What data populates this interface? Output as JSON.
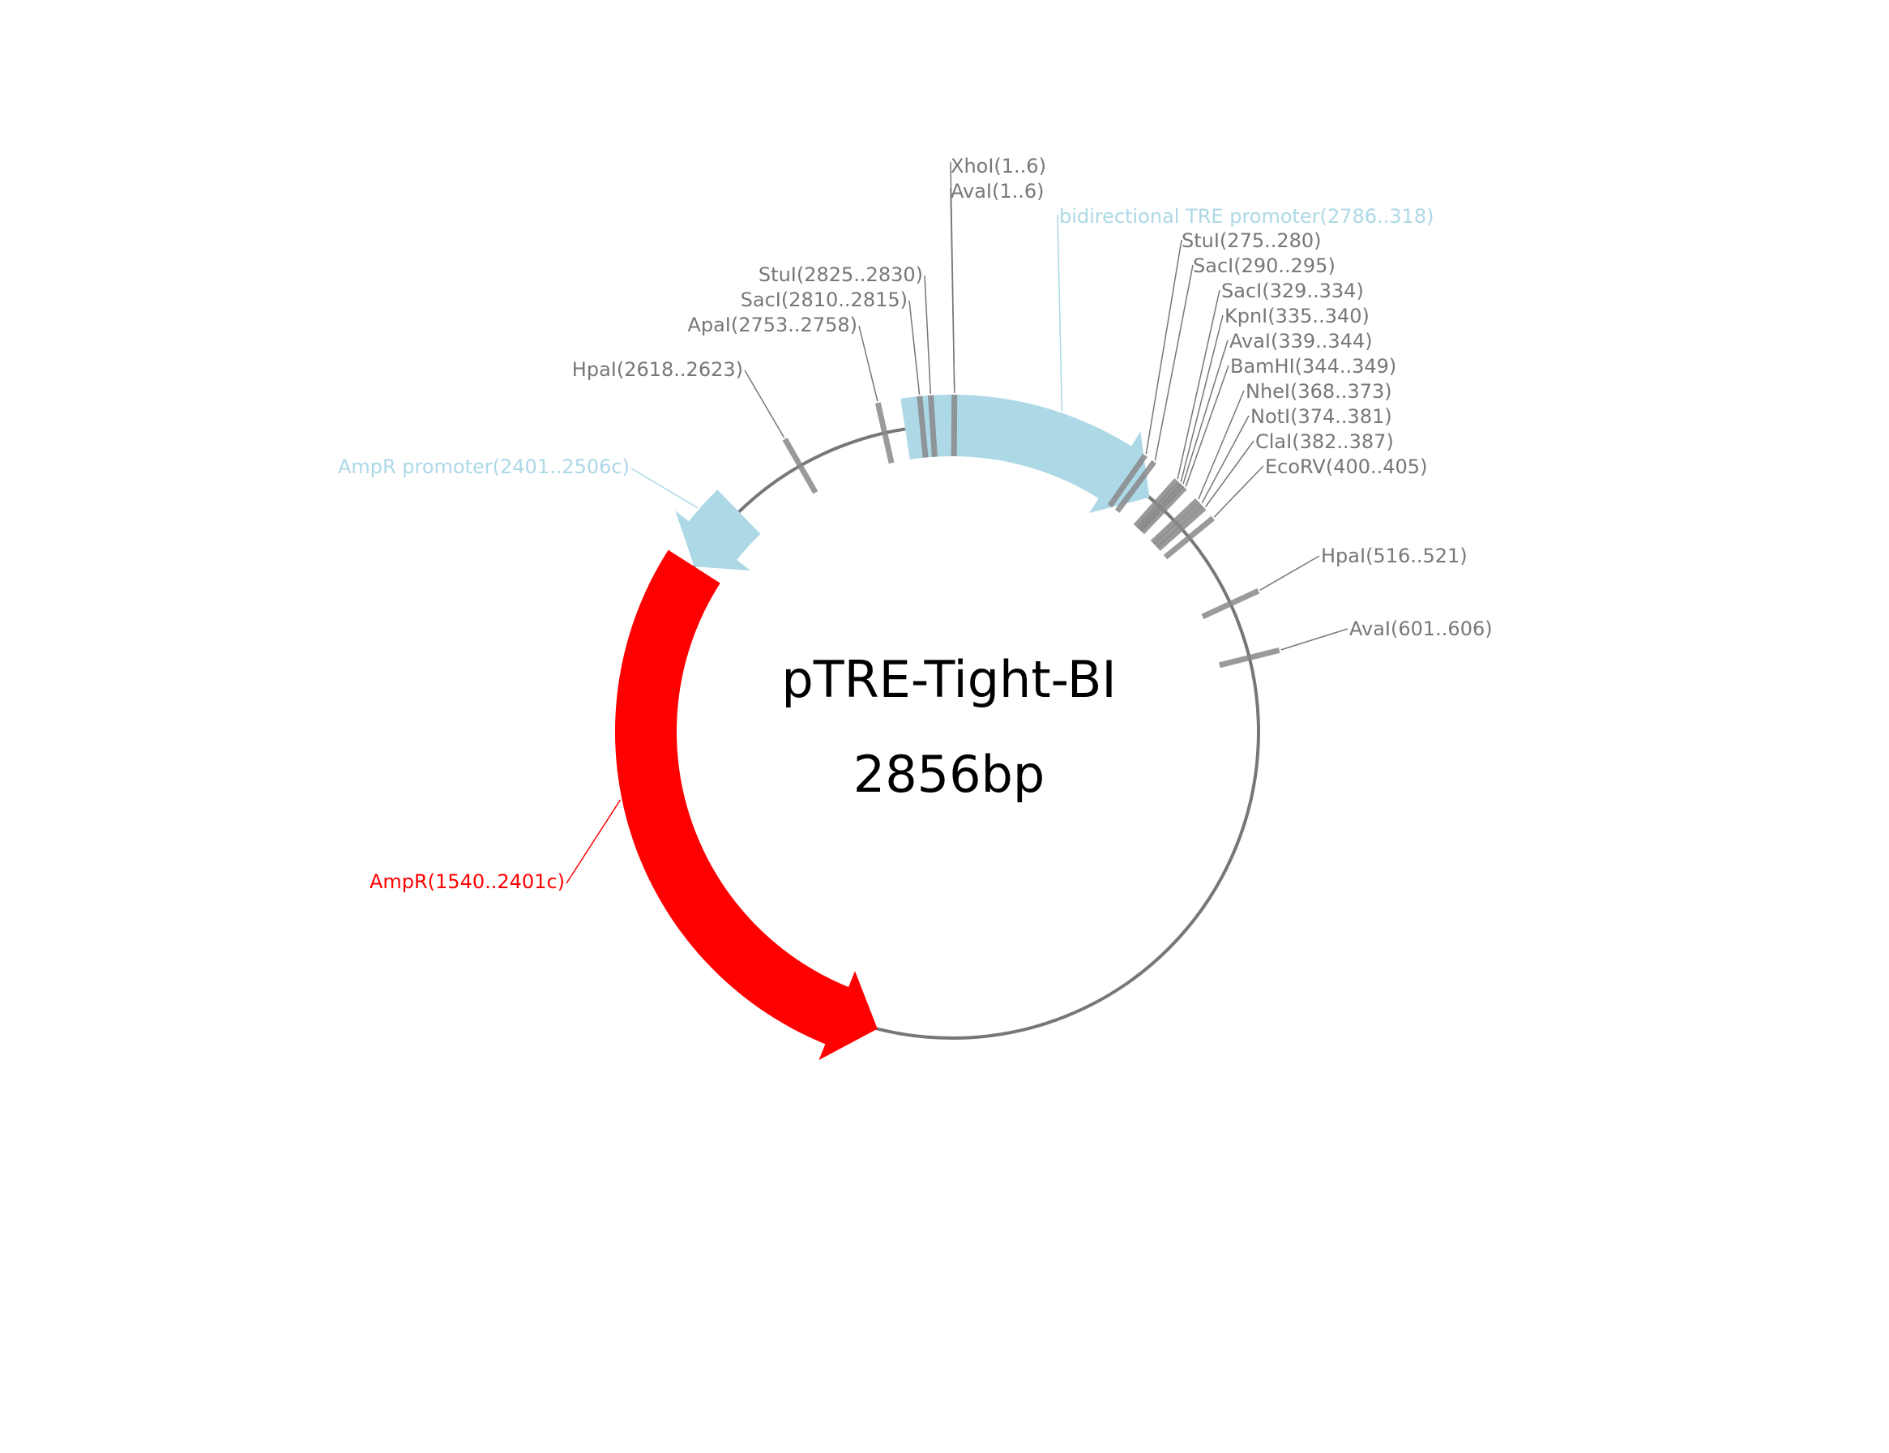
{
  "plasmid": {
    "name": "pTRE-Tight-BI",
    "length_label": "2856bp",
    "length": 2856
  },
  "colors": {
    "backbone": "#777777",
    "site": "#888888",
    "promoter": "#add8e6",
    "gene": "#ff0000"
  },
  "features": [
    {
      "id": "bidirectional-tre-promoter",
      "label": "bidirectional TRE promoter(2786..318)",
      "start": 2786,
      "end": 318,
      "strand": 1,
      "color": "#add8e6",
      "kind": "promoter"
    },
    {
      "id": "ampr-promoter",
      "label": "AmpR promoter(2401..2506c)",
      "start": 2401,
      "end": 2506,
      "strand": -1,
      "color": "#add8e6",
      "kind": "promoter"
    },
    {
      "id": "ampr",
      "label": "AmpR(1540..2401c)",
      "start": 1540,
      "end": 2401,
      "strand": -1,
      "color": "#ff0000",
      "kind": "gene"
    }
  ],
  "sites": [
    {
      "id": "xhoi-1",
      "label": "XhoI(1..6)",
      "pos": 3
    },
    {
      "id": "avai-1",
      "label": "AvaI(1..6)",
      "pos": 3
    },
    {
      "id": "stui-275",
      "label": "StuI(275..280)",
      "pos": 277
    },
    {
      "id": "saci-290",
      "label": "SacI(290..295)",
      "pos": 292
    },
    {
      "id": "saci-329",
      "label": "SacI(329..334)",
      "pos": 331
    },
    {
      "id": "kpni-335",
      "label": "KpnI(335..340)",
      "pos": 337
    },
    {
      "id": "avai-339",
      "label": "AvaI(339..344)",
      "pos": 341
    },
    {
      "id": "bamhi-344",
      "label": "BamHI(344..349)",
      "pos": 346
    },
    {
      "id": "nhei-368",
      "label": "NheI(368..373)",
      "pos": 370
    },
    {
      "id": "noti-374",
      "label": "NotI(374..381)",
      "pos": 377
    },
    {
      "id": "clai-382",
      "label": "ClaI(382..387)",
      "pos": 384
    },
    {
      "id": "ecorv-400",
      "label": "EcoRV(400..405)",
      "pos": 402
    },
    {
      "id": "hpai-516",
      "label": "HpaI(516..521)",
      "pos": 518
    },
    {
      "id": "avai-601",
      "label": "AvaI(601..606)",
      "pos": 603
    },
    {
      "id": "stui-2825",
      "label": "StuI(2825..2830)",
      "pos": 2827
    },
    {
      "id": "saci-2810",
      "label": "SacI(2810..2815)",
      "pos": 2812
    },
    {
      "id": "apai-2753",
      "label": "ApaI(2753..2758)",
      "pos": 2755
    },
    {
      "id": "hpai-2618",
      "label": "HpaI(2618..2623)",
      "pos": 2620
    }
  ]
}
